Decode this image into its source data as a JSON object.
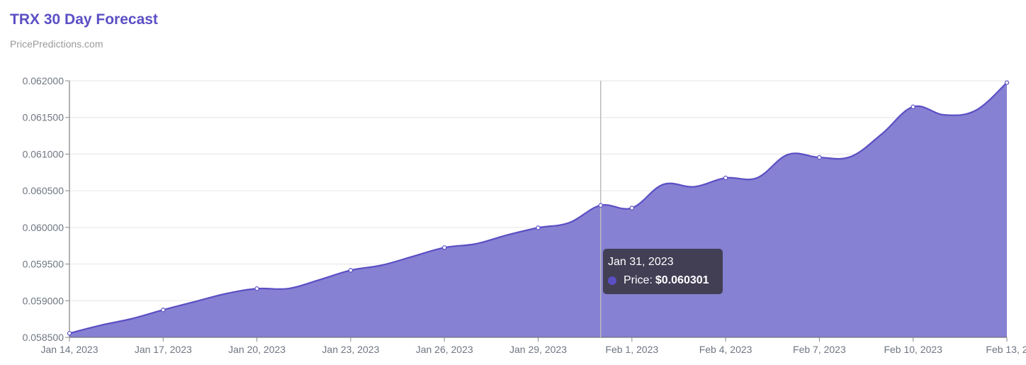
{
  "header": {
    "title": "TRX 30 Day Forecast",
    "subtitle": "PricePredictions.com"
  },
  "tooltip": {
    "date": "Jan 31, 2023",
    "label": "Price:",
    "value": "$0.060301"
  },
  "colors": {
    "line": "#5b4fc4",
    "fill": "#8781d3",
    "cursor": "#bbbbbb"
  },
  "chart_data": {
    "type": "area",
    "title": "TRX 30 Day Forecast",
    "subtitle": "PricePredictions.com",
    "xlabel": "",
    "ylabel": "",
    "ylim": [
      0.0585,
      0.062
    ],
    "y_ticks": [
      "0.062000",
      "0.061500",
      "0.061000",
      "0.060500",
      "0.060000",
      "0.059500",
      "0.059000",
      "0.058500"
    ],
    "x_ticks": [
      "Jan 14, 2023",
      "Jan 17, 2023",
      "Jan 20, 2023",
      "Jan 23, 2023",
      "Jan 26, 2023",
      "Jan 29, 2023",
      "Feb 1, 2023",
      "Feb 4, 2023",
      "Feb 7, 2023",
      "Feb 10, 2023",
      "Feb 13, 2"
    ],
    "grid": true,
    "series": [
      {
        "name": "Price",
        "x": [
          "Jan 14, 2023",
          "Jan 15, 2023",
          "Jan 16, 2023",
          "Jan 17, 2023",
          "Jan 18, 2023",
          "Jan 19, 2023",
          "Jan 20, 2023",
          "Jan 21, 2023",
          "Jan 22, 2023",
          "Jan 23, 2023",
          "Jan 24, 2023",
          "Jan 25, 2023",
          "Jan 26, 2023",
          "Jan 27, 2023",
          "Jan 28, 2023",
          "Jan 29, 2023",
          "Jan 30, 2023",
          "Jan 31, 2023",
          "Feb 1, 2023",
          "Feb 2, 2023",
          "Feb 3, 2023",
          "Feb 4, 2023",
          "Feb 5, 2023",
          "Feb 6, 2023",
          "Feb 7, 2023",
          "Feb 8, 2023",
          "Feb 9, 2023",
          "Feb 10, 2023",
          "Feb 11, 2023",
          "Feb 12, 2023",
          "Feb 13, 2023"
        ],
        "values": [
          0.058555,
          0.058665,
          0.058755,
          0.058875,
          0.058985,
          0.059095,
          0.059165,
          0.059165,
          0.059285,
          0.059415,
          0.059485,
          0.059605,
          0.059725,
          0.059775,
          0.059895,
          0.059995,
          0.060065,
          0.060301,
          0.060265,
          0.060585,
          0.060555,
          0.060675,
          0.060675,
          0.060995,
          0.060955,
          0.060965,
          0.061275,
          0.061645,
          0.061535,
          0.061595,
          0.061975
        ]
      }
    ]
  }
}
